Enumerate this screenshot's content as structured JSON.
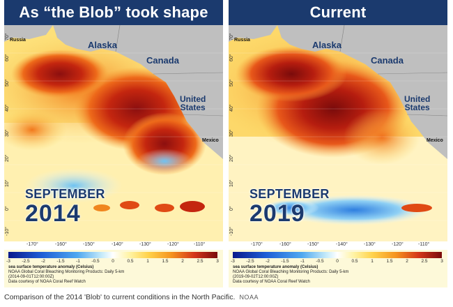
{
  "panels": [
    {
      "title": "As “the Blob” took shape",
      "month": "SEPTEMBER",
      "year": "2014",
      "credits": {
        "line1": "sea surface temperature anomaly (Celsius)",
        "line2": "NOAA Global Coral Bleaching Monitoring Products: Daily 5-km",
        "line3": "(2014-09-01T12:00:00Z)",
        "line4": "Data courtesy of NOAA Coral Reef Watch"
      }
    },
    {
      "title": "Current",
      "month": "SEPTEMBER",
      "year": "2019",
      "credits": {
        "line1": "sea surface temperature anomaly (Celsius)",
        "line2": "NOAA Global Coral Bleaching Monitoring Products: Daily 5-km",
        "line3": "(2019-09-02T12:00:00Z)",
        "line4": "Data courtesy of NOAA Coral Reef Watch"
      }
    }
  ],
  "regions": {
    "russia": "Russia",
    "alaska": "Alaska",
    "canada": "Canada",
    "united": "United",
    "states": "States",
    "mexico": "Mexico"
  },
  "lat_ticks": [
    "70°",
    "60°",
    "50°",
    "40°",
    "30°",
    "20°",
    "10°",
    "0°",
    "-10°"
  ],
  "lon_ticks": [
    "-170°",
    "-160°",
    "-150°",
    "-140°",
    "-130°",
    "-120°",
    "-110°"
  ],
  "colorbar_ticks": [
    "-3",
    "-2.5",
    "-2",
    "-1.5",
    "-1",
    "-0.5",
    "0",
    "0.5",
    "1",
    "1.5",
    "2",
    "2.5",
    "3"
  ],
  "caption": "Comparison of the 2014 'Blob' to current conditions in the North Pacific.",
  "source": "NOAA"
}
